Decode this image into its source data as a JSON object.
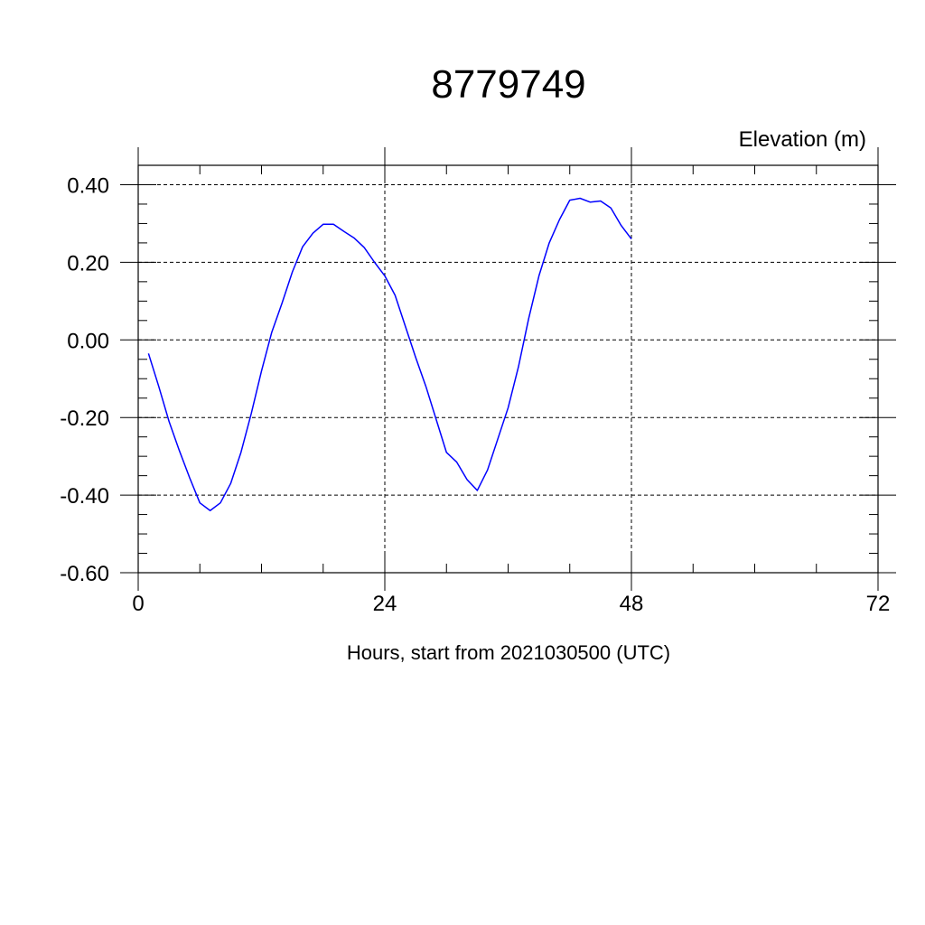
{
  "chart_data": {
    "type": "line",
    "title": "8779749",
    "ylabel": "Elevation (m)",
    "xlabel": "Hours, start from 2021030500 (UTC)",
    "xlim": [
      0,
      72
    ],
    "ylim": [
      -0.6,
      0.45
    ],
    "x_major_ticks": [
      0,
      24,
      48,
      72
    ],
    "x_tick_labels": [
      "0",
      "24",
      "48",
      "72"
    ],
    "x_minor_step": 6,
    "y_major_ticks": [
      -0.6,
      -0.4,
      -0.2,
      0.0,
      0.2,
      0.4
    ],
    "y_tick_labels": [
      "-0.60",
      "-0.40",
      "-0.20",
      "0.00",
      "0.20",
      "0.40"
    ],
    "y_minor_step": 0.05,
    "grid": true,
    "grid_style": "dashed",
    "colors": {
      "series": "#0000ff",
      "axis": "#000000",
      "background": "#ffffff"
    },
    "series": [
      {
        "x": [
          1,
          2,
          3,
          4,
          5,
          6,
          7,
          8,
          9,
          10,
          11,
          12,
          13,
          14,
          15,
          16,
          17,
          18,
          19,
          20,
          21,
          22,
          23,
          24,
          25,
          26,
          27,
          28,
          29,
          30,
          31,
          32,
          33,
          34,
          35,
          36,
          37,
          38,
          39,
          40,
          41,
          42,
          43,
          44,
          45,
          46,
          47,
          48
        ],
        "y": [
          -0.035,
          -0.12,
          -0.21,
          -0.285,
          -0.355,
          -0.42,
          -0.44,
          -0.42,
          -0.37,
          -0.29,
          -0.19,
          -0.08,
          0.02,
          0.095,
          0.175,
          0.24,
          0.275,
          0.298,
          0.298,
          0.28,
          0.263,
          0.238,
          0.2,
          0.165,
          0.115,
          0.035,
          -0.045,
          -0.12,
          -0.205,
          -0.29,
          -0.315,
          -0.36,
          -0.388,
          -0.335,
          -0.255,
          -0.175,
          -0.07,
          0.055,
          0.165,
          0.25,
          0.31,
          0.36,
          0.365,
          0.355,
          0.358,
          0.34,
          0.295,
          0.26
        ]
      }
    ]
  }
}
